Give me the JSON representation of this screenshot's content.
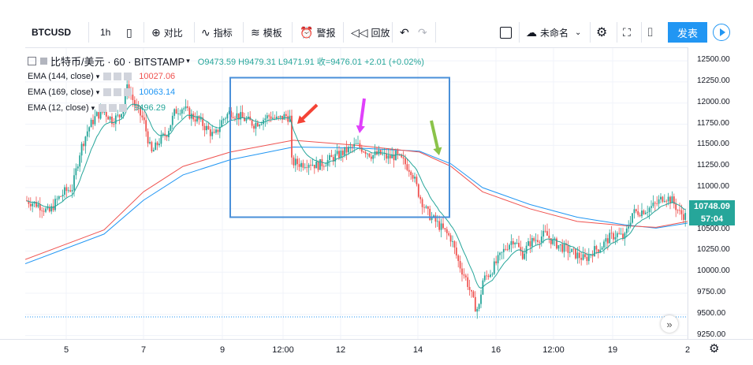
{
  "toolbar": {
    "symbol": "BTCUSD",
    "interval": "1h",
    "compare": "对比",
    "indicators": "指标",
    "templates": "模板",
    "alert": "警报",
    "replay": "回放",
    "layout_name": "未命名",
    "publish": "发表"
  },
  "header": {
    "symbol_line": "比特币/美元 · 60 · BITSTAMP",
    "ohlc": "O9473.59  H9479.31  L9471.91  收=9476.01  +2.01 (+0.02%)"
  },
  "legend": [
    {
      "name": "EMA (144, close)",
      "value": "10027.06",
      "color": "#ef5350"
    },
    {
      "name": "EMA (169, close)",
      "value": "10063.14",
      "color": "#2196f3"
    },
    {
      "name": "EMA (12, close)",
      "value": "9496.29",
      "color": "#26a69a"
    }
  ],
  "price_tags": {
    "last_price": "10748.09",
    "countdown": "57:04"
  },
  "colors": {
    "up": "#26a69a",
    "down": "#ef5350",
    "ema144": "#ef5350",
    "ema169": "#2196f3",
    "ema12": "#26a69a",
    "box": "#4a90d9",
    "arrow_red": "#f44336",
    "arrow_magenta": "#e040fb",
    "arrow_green": "#8bc34a",
    "accent": "#2196f3"
  },
  "chart_data": {
    "type": "candlestick",
    "ylim": [
      9200,
      12650
    ],
    "y_ticks": [
      "12500.00",
      "12250.00",
      "12000.00",
      "11750.00",
      "11500.00",
      "11250.00",
      "11000.00",
      "10750.00",
      "10500.00",
      "10250.00",
      "10000.00",
      "9750.00",
      "9500.00",
      "9250.00"
    ],
    "x_ticks": [
      "5",
      "7",
      "9",
      "12:00",
      "12",
      "14",
      "16",
      "12:00",
      "19",
      "2"
    ],
    "price_path": [
      [
        0,
        10850
      ],
      [
        10,
        10820
      ],
      [
        20,
        10780
      ],
      [
        30,
        10700
      ],
      [
        40,
        10850
      ],
      [
        50,
        10950
      ],
      [
        60,
        11000
      ],
      [
        70,
        11450
      ],
      [
        80,
        11700
      ],
      [
        90,
        11850
      ],
      [
        100,
        11900
      ],
      [
        110,
        11800
      ],
      [
        120,
        11850
      ],
      [
        130,
        12200
      ],
      [
        140,
        11950
      ],
      [
        150,
        11800
      ],
      [
        160,
        11400
      ],
      [
        170,
        11550
      ],
      [
        180,
        11650
      ],
      [
        190,
        11900
      ],
      [
        200,
        11950
      ],
      [
        210,
        11850
      ],
      [
        220,
        11800
      ],
      [
        230,
        11700
      ],
      [
        240,
        11600
      ],
      [
        250,
        11800
      ],
      [
        260,
        11900
      ],
      [
        270,
        11850
      ],
      [
        280,
        11800
      ],
      [
        290,
        11750
      ],
      [
        300,
        11800
      ],
      [
        310,
        11850
      ],
      [
        320,
        11800
      ],
      [
        330,
        11850
      ],
      [
        337,
        11820
      ],
      [
        338,
        11300
      ],
      [
        350,
        11280
      ],
      [
        360,
        11300
      ],
      [
        370,
        11260
      ],
      [
        380,
        11300
      ],
      [
        390,
        11350
      ],
      [
        400,
        11400
      ],
      [
        410,
        11450
      ],
      [
        420,
        11500
      ],
      [
        430,
        11450
      ],
      [
        440,
        11380
      ],
      [
        450,
        11400
      ],
      [
        460,
        11350
      ],
      [
        470,
        11380
      ],
      [
        480,
        11300
      ],
      [
        490,
        11200
      ],
      [
        500,
        10900
      ],
      [
        510,
        10700
      ],
      [
        520,
        10600
      ],
      [
        530,
        10500
      ],
      [
        540,
        10400
      ],
      [
        550,
        10100
      ],
      [
        560,
        9900
      ],
      [
        570,
        9600
      ],
      [
        575,
        9550
      ],
      [
        580,
        9900
      ],
      [
        590,
        10000
      ],
      [
        600,
        10150
      ],
      [
        610,
        10300
      ],
      [
        620,
        10400
      ],
      [
        630,
        10200
      ],
      [
        640,
        10350
      ],
      [
        650,
        10400
      ],
      [
        660,
        10450
      ],
      [
        670,
        10350
      ],
      [
        680,
        10300
      ],
      [
        690,
        10250
      ],
      [
        700,
        10200
      ],
      [
        710,
        10150
      ],
      [
        720,
        10250
      ],
      [
        730,
        10300
      ],
      [
        740,
        10400
      ],
      [
        750,
        10450
      ],
      [
        760,
        10400
      ],
      [
        770,
        10700
      ],
      [
        780,
        10720
      ],
      [
        790,
        10750
      ],
      [
        800,
        10800
      ],
      [
        810,
        10900
      ],
      [
        820,
        10850
      ],
      [
        830,
        10700
      ],
      [
        840,
        10650
      ]
    ],
    "ema144": [
      [
        0,
        10150
      ],
      [
        100,
        10500
      ],
      [
        150,
        10950
      ],
      [
        200,
        11250
      ],
      [
        260,
        11420
      ],
      [
        340,
        11560
      ],
      [
        420,
        11500
      ],
      [
        500,
        11420
      ],
      [
        540,
        11250
      ],
      [
        580,
        10950
      ],
      [
        640,
        10750
      ],
      [
        700,
        10600
      ],
      [
        760,
        10550
      ],
      [
        800,
        10530
      ],
      [
        840,
        10600
      ]
    ],
    "ema169": [
      [
        0,
        10100
      ],
      [
        100,
        10450
      ],
      [
        150,
        10850
      ],
      [
        200,
        11150
      ],
      [
        260,
        11330
      ],
      [
        340,
        11480
      ],
      [
        420,
        11470
      ],
      [
        500,
        11430
      ],
      [
        540,
        11280
      ],
      [
        580,
        11000
      ],
      [
        640,
        10800
      ],
      [
        700,
        10650
      ],
      [
        760,
        10560
      ],
      [
        800,
        10520
      ],
      [
        840,
        10580
      ]
    ],
    "box": {
      "x0": 260,
      "x1": 538,
      "y_top": 12300,
      "y_bottom": 10650
    },
    "baseline": 9470
  }
}
